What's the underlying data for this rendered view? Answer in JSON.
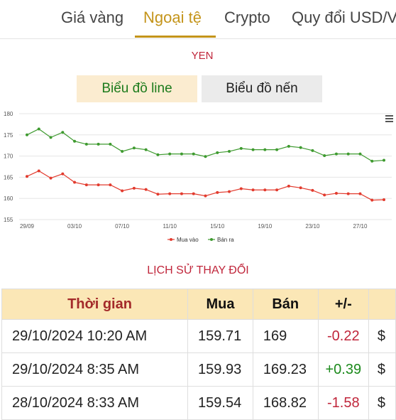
{
  "nav": {
    "tabs": [
      {
        "label": "Giá vàng",
        "active": false
      },
      {
        "label": "Ngoại tệ",
        "active": true
      },
      {
        "label": "Crypto",
        "active": false
      },
      {
        "label": "Quy đổi USD/V",
        "active": false
      }
    ]
  },
  "currency": "YEN",
  "chart_buttons": {
    "line": "Biểu đồ line",
    "candle": "Biểu đồ nến"
  },
  "chart_data": {
    "type": "line",
    "x_ticks": [
      "29/09",
      "03/10",
      "07/10",
      "11/10",
      "15/10",
      "19/10",
      "23/10",
      "27/10"
    ],
    "ylim": [
      155,
      180
    ],
    "y_ticks": [
      155,
      160,
      165,
      170,
      175,
      180
    ],
    "legend_position": "bottom",
    "series": [
      {
        "name": "Mua vào",
        "color": "#e23b2e",
        "values": [
          165.2,
          166.5,
          164.8,
          165.8,
          163.8,
          163.2,
          163.2,
          163.2,
          161.8,
          162.4,
          162.1,
          161.0,
          161.1,
          161.1,
          161.1,
          160.6,
          161.4,
          161.6,
          162.3,
          162.0,
          162.0,
          162.0,
          162.9,
          162.5,
          161.9,
          160.8,
          161.2,
          161.1,
          161.1,
          159.6,
          159.7
        ]
      },
      {
        "name": "Bán ra",
        "color": "#3e9a2f",
        "values": [
          175.0,
          176.4,
          174.4,
          175.6,
          173.5,
          172.8,
          172.8,
          172.8,
          171.1,
          171.9,
          171.5,
          170.3,
          170.5,
          170.5,
          170.5,
          169.9,
          170.8,
          171.1,
          171.8,
          171.5,
          171.5,
          171.5,
          172.3,
          172.0,
          171.3,
          170.1,
          170.5,
          170.5,
          170.5,
          168.8,
          169.0
        ]
      }
    ]
  },
  "history": {
    "title": "LỊCH SỬ THAY ĐỔI",
    "headers": {
      "time": "Thời gian",
      "buy": "Mua",
      "sell": "Bán",
      "diff": "+/-",
      "extra": ""
    },
    "rows": [
      {
        "time": "29/10/2024 10:20 AM",
        "buy": "159.71",
        "sell": "169",
        "diff": "-0.22",
        "extra": "$"
      },
      {
        "time": "29/10/2024 8:35 AM",
        "buy": "159.93",
        "sell": "169.23",
        "diff": "+0.39",
        "extra": "$"
      },
      {
        "time": "28/10/2024 8:33 AM",
        "buy": "159.54",
        "sell": "168.82",
        "diff": "-1.58",
        "extra": "$"
      }
    ]
  }
}
